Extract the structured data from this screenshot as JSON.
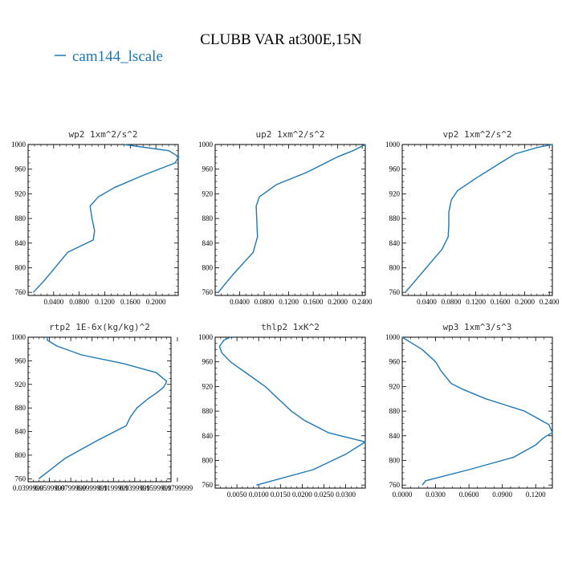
{
  "figure": {
    "title": "CLUBB VAR at300E,15N",
    "legend": [
      {
        "name": "cam144_lscale",
        "color": "#1f77b4"
      }
    ]
  },
  "chart_data": [
    {
      "type": "line",
      "title": "wp2   1xm^2/s^2",
      "xlim": [
        0.0,
        0.235
      ],
      "xticks": [
        "0.0400",
        "0.0800",
        "0.1200",
        "0.1600",
        "0.2000"
      ],
      "ylim": [
        1000,
        755
      ],
      "yticks": [
        "760",
        "800",
        "840",
        "880",
        "920",
        "960",
        "1000"
      ],
      "series": [
        {
          "name": "cam144_lscale",
          "color": "#1f77b4",
          "x": [
            0.008,
            0.026,
            0.062,
            0.102,
            0.104,
            0.1,
            0.097,
            0.11,
            0.135,
            0.18,
            0.23,
            0.236,
            0.22,
            0.15
          ],
          "y": [
            760,
            780,
            825,
            845,
            860,
            880,
            900,
            915,
            930,
            950,
            970,
            980,
            990,
            1000
          ]
        }
      ]
    },
    {
      "type": "line",
      "title": "up2   1xm^2/s^2",
      "xlim": [
        0.0,
        0.245
      ],
      "xticks": [
        "0.0400",
        "0.0800",
        "0.1200",
        "0.1600",
        "0.2000",
        "0.2400"
      ],
      "ylim": [
        1000,
        755
      ],
      "yticks": [
        "760",
        "800",
        "840",
        "880",
        "920",
        "960",
        "1000"
      ],
      "series": [
        {
          "name": "cam144_lscale",
          "color": "#1f77b4",
          "x": [
            0.005,
            0.03,
            0.062,
            0.069,
            0.068,
            0.067,
            0.072,
            0.1,
            0.15,
            0.2,
            0.225,
            0.245
          ],
          "y": [
            760,
            790,
            825,
            850,
            875,
            900,
            915,
            935,
            955,
            980,
            990,
            1000
          ]
        }
      ]
    },
    {
      "type": "line",
      "title": "vp2   1xm^2/s^2",
      "xlim": [
        0.0,
        0.245
      ],
      "xticks": [
        "0.0400",
        "0.0800",
        "0.1200",
        "0.1600",
        "0.2000",
        "0.2400"
      ],
      "ylim": [
        1000,
        755
      ],
      "yticks": [
        "760",
        "800",
        "840",
        "880",
        "920",
        "960",
        "1000"
      ],
      "series": [
        {
          "name": "cam144_lscale",
          "color": "#1f77b4",
          "x": [
            0.005,
            0.035,
            0.065,
            0.075,
            0.076,
            0.076,
            0.08,
            0.09,
            0.12,
            0.16,
            0.185,
            0.22,
            0.245
          ],
          "y": [
            760,
            795,
            830,
            850,
            870,
            890,
            910,
            925,
            945,
            970,
            985,
            995,
            1000
          ]
        }
      ]
    },
    {
      "type": "line",
      "title": "rtp2   1E-6x(kg/kg)^2",
      "xlim": [
        0.039999,
        0.1739999
      ],
      "xticks": [
        "0.0399999",
        "0.0599999",
        "0.0799999",
        "0.0999999",
        "0.1199999",
        "0.1399999",
        "0.1599999",
        "0.1799999"
      ],
      "ylim": [
        1000,
        755
      ],
      "yticks": [
        "760",
        "800",
        "840",
        "880",
        "920",
        "960",
        "1000"
      ],
      "series": [
        {
          "name": "cam144_lscale",
          "color": "#1f77b4",
          "x": [
            0.05,
            0.075,
            0.105,
            0.132,
            0.136,
            0.142,
            0.152,
            0.16,
            0.167,
            0.17,
            0.16,
            0.13,
            0.09,
            0.067,
            0.058,
            0.058
          ],
          "y": [
            760,
            795,
            825,
            850,
            865,
            880,
            895,
            905,
            915,
            925,
            940,
            955,
            970,
            985,
            995,
            1000
          ]
        }
      ]
    },
    {
      "type": "line",
      "title": "thlp2   1xK^2",
      "xlim": [
        0.0,
        0.0345
      ],
      "xticks": [
        "0.0050",
        "0.0100",
        "0.0150",
        "0.0200",
        "0.0250",
        "0.0300"
      ],
      "ylim": [
        1000,
        755
      ],
      "yticks": [
        "760",
        "800",
        "840",
        "880",
        "920",
        "960",
        "1000"
      ],
      "series": [
        {
          "name": "cam144_lscale",
          "color": "#1f77b4",
          "x": [
            0.0095,
            0.0225,
            0.03,
            0.0345,
            0.026,
            0.0205,
            0.0175,
            0.0145,
            0.0115,
            0.0075,
            0.0035,
            0.0015,
            0.001,
            0.002,
            0.0035
          ],
          "y": [
            760,
            785,
            810,
            830,
            845,
            865,
            880,
            900,
            920,
            940,
            960,
            975,
            985,
            995,
            1000
          ]
        }
      ]
    },
    {
      "type": "line",
      "title": "wp3   1xm^3/s^3",
      "xlim": [
        0.0,
        0.135
      ],
      "xticks": [
        "0.0000",
        "0.0300",
        "0.0600",
        "0.0900",
        "0.1200"
      ],
      "ylim": [
        1000,
        755
      ],
      "yticks": [
        "760",
        "800",
        "840",
        "880",
        "920",
        "960",
        "1000"
      ],
      "series": [
        {
          "name": "cam144_lscale",
          "color": "#1f77b4",
          "x": [
            0.018,
            0.021,
            0.06,
            0.1,
            0.12,
            0.126,
            0.13,
            0.135,
            0.132,
            0.11,
            0.075,
            0.055,
            0.044,
            0.035,
            0.03,
            0.018,
            0.0
          ],
          "y": [
            760,
            767,
            785,
            805,
            825,
            835,
            840,
            845,
            858,
            880,
            900,
            915,
            925,
            945,
            960,
            980,
            1000
          ]
        }
      ]
    }
  ]
}
